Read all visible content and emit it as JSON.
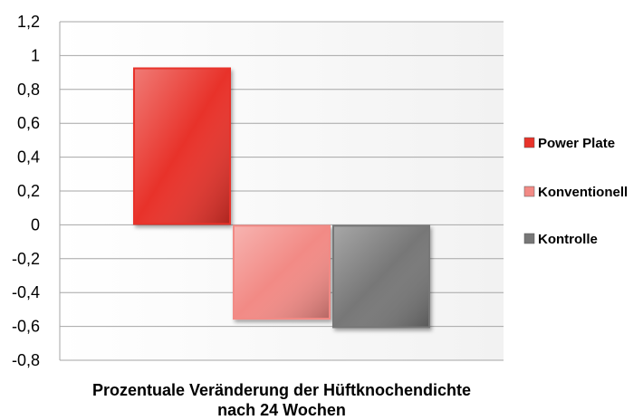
{
  "chart_data": {
    "type": "bar",
    "categories": [
      "Power Plate",
      "Konventionell",
      "Kontrolle"
    ],
    "series": [
      {
        "name": "Power Plate",
        "value": 0.93,
        "color": "#e8332a"
      },
      {
        "name": "Konventionell",
        "value": -0.56,
        "color": "#f28a85"
      },
      {
        "name": "Kontrolle",
        "value": -0.61,
        "color": "#777777"
      }
    ],
    "title": "",
    "xlabel_lines": [
      "Prozentuale Veränderung der Hüftknochendichte",
      "nach 24 Wochen"
    ],
    "ylabel": "",
    "ylim": [
      -0.8,
      1.2
    ],
    "yticks": [
      "1,2",
      "1",
      "0,8",
      "0,6",
      "0,4",
      "0,2",
      "0",
      "-0,2",
      "-0,4",
      "-0,6",
      "-0,8"
    ],
    "grid": true,
    "legend_position": "right"
  }
}
